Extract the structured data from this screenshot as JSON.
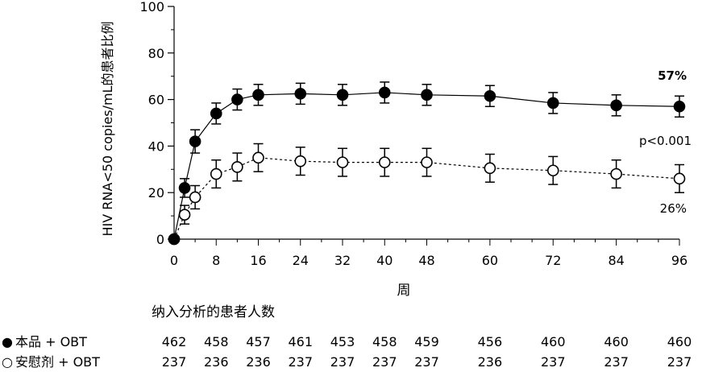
{
  "chart_data": {
    "type": "line",
    "ylabel": "HIV RNA<50 copies/mL的患者比例",
    "xlabel": "周",
    "ylim": [
      0,
      100
    ],
    "yticks": [
      0,
      20,
      40,
      60,
      80,
      100
    ],
    "xticks": [
      0,
      8,
      16,
      24,
      32,
      40,
      48,
      60,
      72,
      84,
      96
    ],
    "series": [
      {
        "name": "本品 + OBT",
        "marker": "filled-circle",
        "line_style": "solid",
        "x": [
          0,
          2,
          4,
          8,
          12,
          16,
          24,
          32,
          40,
          48,
          60,
          72,
          84,
          96
        ],
        "values": [
          0,
          22,
          42,
          54,
          60,
          62,
          62.5,
          62,
          63,
          62,
          61.5,
          58.5,
          57.5,
          57
        ],
        "err": [
          0,
          4,
          5,
          4.5,
          4.5,
          4.5,
          4.5,
          4.5,
          4.5,
          4.5,
          4.5,
          4.5,
          4.5,
          4.5
        ],
        "end_label": "57%"
      },
      {
        "name": "安慰剂 + OBT",
        "marker": "open-circle",
        "line_style": "dashed",
        "x": [
          0,
          2,
          4,
          8,
          12,
          16,
          24,
          32,
          40,
          48,
          60,
          72,
          84,
          96
        ],
        "values": [
          0,
          10.5,
          18,
          28,
          31,
          35,
          33.5,
          33,
          33,
          33,
          30.5,
          29.5,
          28,
          26
        ],
        "err": [
          0,
          4,
          5,
          6,
          6,
          6,
          6,
          6,
          6,
          6,
          6,
          6,
          6,
          6
        ],
        "end_label": "26%"
      }
    ],
    "annotation_pvalue": "p<0.001"
  },
  "patients": {
    "title": "纳入分析的患者人数",
    "weeks": [
      0,
      8,
      16,
      24,
      32,
      40,
      48,
      60,
      72,
      84,
      96
    ],
    "rows": [
      {
        "label": "本品 + OBT",
        "marker": "●",
        "counts": [
          "462",
          "458",
          "457",
          "461",
          "453",
          "458",
          "459",
          "456",
          "460",
          "460",
          "460"
        ]
      },
      {
        "label": "安慰剂 + OBT",
        "marker": "○",
        "counts": [
          "237",
          "236",
          "236",
          "237",
          "237",
          "237",
          "237",
          "236",
          "237",
          "237",
          "237"
        ]
      }
    ]
  }
}
